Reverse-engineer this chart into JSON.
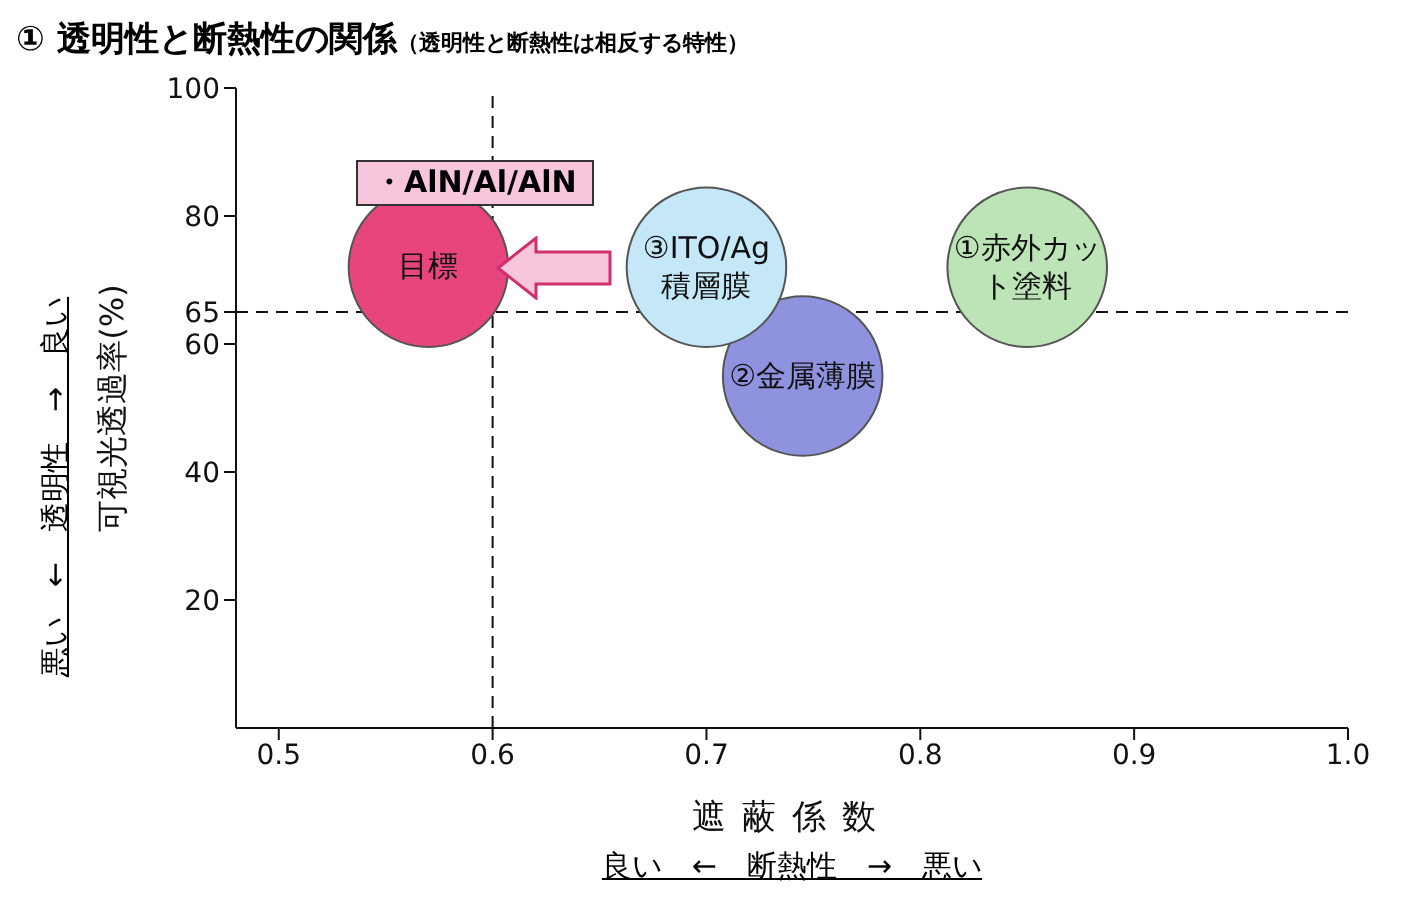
{
  "chart_data": {
    "type": "scatter",
    "title": "① 透明性と断熱性の関係",
    "subtitle": "（透明性と断熱性は相反する特性）",
    "xlabel": "遮蔽係数",
    "ylabel": "可視光透過率(%)",
    "xlim": [
      0.48,
      1.0
    ],
    "xticks": [
      0.5,
      0.6,
      0.7,
      0.8,
      0.9,
      {
        "value": 1.0,
        "label": "1.0"
      }
    ],
    "ylim": [
      0,
      100
    ],
    "yticks": [
      20,
      40,
      60,
      65,
      80,
      100
    ],
    "grid": false,
    "series": [
      {
        "name": "目標",
        "color": "#e8457e",
        "x": [
          0.57
        ],
        "values": [
          72
        ]
      },
      {
        "name": "②金属薄膜",
        "color": "#8f92de",
        "x": [
          0.745
        ],
        "values": [
          55
        ]
      },
      {
        "name": "③ITO/Ag積層膜",
        "color": "#c4e8f8",
        "x": [
          0.7
        ],
        "values": [
          72
        ]
      },
      {
        "name": "①赤外カット塗料",
        "color": "#bde4b6",
        "x": [
          0.85
        ],
        "values": [
          72
        ]
      }
    ],
    "ref_lines": [
      {
        "axis": "x",
        "value": 0.6,
        "line_style": "dashed"
      },
      {
        "axis": "y",
        "value": 65,
        "line_style": "dashed"
      }
    ],
    "annotations": [
      "・AlN/Al/AlN",
      "良い　←　断熱性　→　悪い",
      "悪い　←　透明性　→　良い"
    ]
  }
}
